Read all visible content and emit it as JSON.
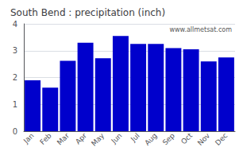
{
  "chart_data": {
    "type": "bar",
    "title": "South Bend : precipitation (inch)",
    "categories": [
      "Jan",
      "Feb",
      "Mar",
      "Apr",
      "May",
      "Jun",
      "Jul",
      "Aug",
      "Sep",
      "Oct",
      "Nov",
      "Dec"
    ],
    "values": [
      1.9,
      1.62,
      2.62,
      3.3,
      2.72,
      3.55,
      3.25,
      3.25,
      3.1,
      3.05,
      2.6,
      2.75
    ],
    "color": "#0000CC",
    "ylim": [
      0,
      4
    ],
    "yticks": [
      0,
      1,
      2,
      3,
      4
    ],
    "grid": true,
    "annotations": [
      "www.allmetsat.com"
    ]
  }
}
